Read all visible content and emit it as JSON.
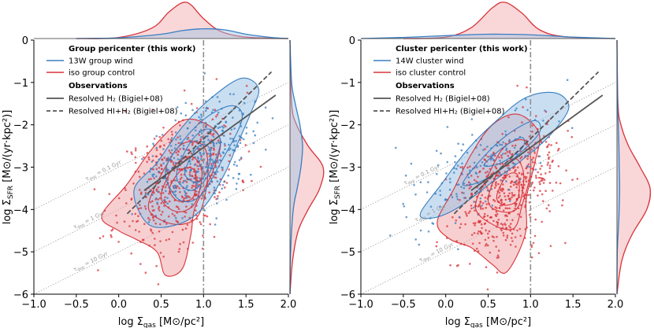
{
  "colors": {
    "wind": "#3a7fc0",
    "wind_fill": "#9cc3e6",
    "control": "#d8333a",
    "control_fill": "#f2a7aa",
    "obs": "#555555",
    "tdep": "#9a9a9a",
    "vline": "#909090"
  },
  "chart_data": [
    {
      "type": "scatter",
      "panel": "left",
      "xlabel": "log Σ",
      "xlabel_sub": "gas",
      "xlabel_unit": "[M⊙/pc²]",
      "ylabel": "log Σ",
      "ylabel_sub": "SFR",
      "ylabel_unit": "[M⊙/(yr·kpc²)]",
      "xlim": [
        -1.0,
        2.0
      ],
      "ylim": [
        -6,
        0
      ],
      "xticks": [
        "−1.0",
        "−0.5",
        "0.0",
        "0.5",
        "1.0",
        "1.5",
        "2.0"
      ],
      "xtick_values": [
        -1.0,
        -0.5,
        0.0,
        0.5,
        1.0,
        1.5,
        2.0
      ],
      "yticks": [
        "−6",
        "−5",
        "−4",
        "−3",
        "−2",
        "−1",
        "0"
      ],
      "ytick_values": [
        -6,
        -5,
        -4,
        -3,
        -2,
        -1,
        0
      ],
      "vline_x": 1.0,
      "legend": {
        "title": "Group pericenter (this work)",
        "wind": "13W group wind",
        "control": "iso group control",
        "obs_title": "Observations",
        "h2": "Resolved H₂ (Bigiel+08)",
        "hih2": "Resolved HI+H₂ (Bigiel+08)"
      },
      "tdep_lines": [
        {
          "label": "τ_dep = 0.1 Gyr",
          "label_sub": "dep",
          "label_val": " = 0.1 Gyr",
          "intercept": -3.0,
          "label_x": -0.38
        },
        {
          "label": "τ_dep = 1 Gyr",
          "label_sub": "dep",
          "label_val": " = 1 Gyr",
          "intercept": -4.0,
          "label_x": -0.52
        },
        {
          "label": "τ_dep = 10 Gyr",
          "label_sub": "dep",
          "label_val": " = 10 Gyr",
          "intercept": -5.0,
          "label_x": -0.52
        }
      ],
      "h2_line": {
        "x": [
          0.3,
          1.85
        ],
        "y": [
          -3.55,
          -1.3
        ]
      },
      "hih2_line": {
        "x": [
          0.1,
          1.8
        ],
        "y": [
          -4.1,
          -0.75
        ]
      },
      "wind_series": {
        "name": "13W group wind",
        "center": [
          0.95,
          -2.7
        ],
        "spread": [
          0.28,
          0.6
        ],
        "n": 330
      },
      "control_series": {
        "name": "iso group control",
        "center": [
          0.7,
          -3.3
        ],
        "spread": [
          0.35,
          0.75
        ],
        "n": 450
      },
      "wind_contours": [
        [
          [
            0.18,
            -3.55
          ],
          [
            0.45,
            -2.9
          ],
          [
            0.75,
            -2.05
          ],
          [
            1.1,
            -1.35
          ],
          [
            1.45,
            -0.9
          ],
          [
            1.65,
            -1.15
          ],
          [
            1.55,
            -1.75
          ],
          [
            1.4,
            -2.45
          ],
          [
            1.25,
            -3.15
          ],
          [
            1.0,
            -3.95
          ],
          [
            0.7,
            -4.35
          ],
          [
            0.35,
            -4.35
          ]
        ],
        [
          [
            0.55,
            -3.1
          ],
          [
            0.75,
            -2.4
          ],
          [
            1.05,
            -1.8
          ],
          [
            1.35,
            -1.55
          ],
          [
            1.45,
            -1.9
          ],
          [
            1.2,
            -2.9
          ],
          [
            0.95,
            -3.7
          ],
          [
            0.7,
            -3.75
          ]
        ],
        [
          [
            0.68,
            -3.2
          ],
          [
            0.85,
            -2.4
          ],
          [
            1.05,
            -2.1
          ],
          [
            1.2,
            -2.4
          ],
          [
            1.05,
            -3.2
          ],
          [
            0.85,
            -3.55
          ]
        ],
        [
          [
            0.78,
            -3.15
          ],
          [
            0.92,
            -2.55
          ],
          [
            1.05,
            -2.5
          ],
          [
            1.08,
            -2.85
          ],
          [
            0.95,
            -3.35
          ]
        ]
      ],
      "control_contours": [
        [
          [
            -0.2,
            -4.15
          ],
          [
            0.1,
            -3.4
          ],
          [
            0.4,
            -2.55
          ],
          [
            0.75,
            -1.9
          ],
          [
            1.05,
            -2.0
          ],
          [
            1.2,
            -2.4
          ],
          [
            1.1,
            -3.15
          ],
          [
            0.9,
            -3.95
          ],
          [
            0.85,
            -4.6
          ],
          [
            0.75,
            -5.4
          ],
          [
            0.55,
            -5.55
          ],
          [
            0.45,
            -5.0
          ],
          [
            0.2,
            -4.7
          ],
          [
            0.0,
            -4.5
          ]
        ],
        [
          [
            0.35,
            -3.9
          ],
          [
            0.55,
            -3.0
          ],
          [
            0.75,
            -2.45
          ],
          [
            1.0,
            -2.5
          ],
          [
            1.05,
            -3.2
          ],
          [
            0.95,
            -4.1
          ],
          [
            0.75,
            -4.35
          ],
          [
            0.5,
            -4.25
          ]
        ],
        [
          [
            0.5,
            -3.7
          ],
          [
            0.65,
            -3.0
          ],
          [
            0.85,
            -2.75
          ],
          [
            0.98,
            -3.1
          ],
          [
            0.9,
            -3.85
          ],
          [
            0.68,
            -4.05
          ]
        ],
        [
          [
            0.6,
            -3.5
          ],
          [
            0.75,
            -3.05
          ],
          [
            0.9,
            -3.1
          ],
          [
            0.88,
            -3.7
          ],
          [
            0.7,
            -3.8
          ]
        ]
      ],
      "marginal_x_wind": {
        "centers": [
          -0.5,
          0.0,
          0.5,
          0.75,
          1.0,
          1.25,
          1.5,
          1.8,
          2.0
        ],
        "density": [
          0.0,
          0.02,
          0.12,
          0.22,
          0.27,
          0.24,
          0.12,
          0.03,
          0.0
        ]
      },
      "marginal_x_control": {
        "centers": [
          -0.5,
          0.0,
          0.4,
          0.6,
          0.8,
          1.0,
          1.2,
          1.5,
          2.0
        ],
        "density": [
          0.0,
          0.03,
          0.3,
          0.75,
          1.0,
          0.55,
          0.2,
          0.04,
          0.0
        ]
      },
      "marginal_y_wind": {
        "centers": [
          -6,
          -5,
          -4,
          -3.5,
          -3,
          -2.5,
          -2,
          -1.5,
          -1,
          0
        ],
        "density": [
          0.0,
          0.02,
          0.1,
          0.22,
          0.33,
          0.38,
          0.3,
          0.16,
          0.05,
          0.0
        ]
      },
      "marginal_y_control": {
        "centers": [
          -6,
          -5.2,
          -4.5,
          -4,
          -3.5,
          -3,
          -2.5,
          -2,
          -1.5,
          0
        ],
        "density": [
          0.0,
          0.08,
          0.25,
          0.55,
          0.9,
          1.0,
          0.55,
          0.2,
          0.05,
          0.0
        ]
      }
    },
    {
      "type": "scatter",
      "panel": "right",
      "xlabel": "log Σ",
      "xlabel_sub": "gas",
      "xlabel_unit": "[M⊙/pc²]",
      "ylabel": "log Σ",
      "ylabel_sub": "SFR",
      "ylabel_unit": "[M⊙/(yr·kpc²)]",
      "xlim": [
        -1.0,
        2.0
      ],
      "ylim": [
        -6,
        0
      ],
      "xticks": [
        "−1.0",
        "−0.5",
        "0.0",
        "0.5",
        "1.0",
        "1.5",
        "2.0"
      ],
      "xtick_values": [
        -1.0,
        -0.5,
        0.0,
        0.5,
        1.0,
        1.5,
        2.0
      ],
      "yticks": [
        "−6",
        "−5",
        "−4",
        "−3",
        "−2",
        "−1",
        "0"
      ],
      "ytick_values": [
        -6,
        -5,
        -4,
        -3,
        -2,
        -1,
        0
      ],
      "vline_x": 1.0,
      "legend": {
        "title": "Cluster pericenter (this work)",
        "wind": "14W cluster wind",
        "control": "iso cluster control",
        "obs_title": "Observations",
        "h2": "Resolved H₂ (Bigiel+08)",
        "hih2": "Resolved HI+H₂ (Bigiel+08)"
      },
      "tdep_lines": [
        {
          "label": "τ_dep = 0.1 Gyr",
          "label_sub": "dep",
          "label_val": " = 0.1 Gyr",
          "intercept": -3.0,
          "label_x": -0.48
        },
        {
          "label": "τ_dep = 1 Gyr",
          "label_sub": "dep",
          "label_val": " = 1 Gyr",
          "intercept": -4.0,
          "label_x": -0.35
        },
        {
          "label": "τ_dep = 10 Gyr",
          "label_sub": "dep",
          "label_val": " = 10 Gyr",
          "intercept": -5.0,
          "label_x": -0.3
        }
      ],
      "h2_line": {
        "x": [
          0.3,
          1.85
        ],
        "y": [
          -3.55,
          -1.3
        ]
      },
      "hih2_line": {
        "x": [
          0.1,
          1.8
        ],
        "y": [
          -4.1,
          -0.75
        ]
      },
      "wind_series": {
        "name": "14W cluster wind",
        "center": [
          0.35,
          -3.1
        ],
        "spread": [
          0.45,
          0.55
        ],
        "n": 160
      },
      "control_series": {
        "name": "iso cluster control",
        "center": [
          0.7,
          -3.6
        ],
        "spread": [
          0.3,
          0.7
        ],
        "n": 500
      },
      "wind_contours": [
        [
          [
            -0.3,
            -4.1
          ],
          [
            -0.05,
            -3.4
          ],
          [
            0.25,
            -2.6
          ],
          [
            0.6,
            -1.9
          ],
          [
            0.95,
            -1.35
          ],
          [
            1.3,
            -1.25
          ],
          [
            1.45,
            -1.6
          ],
          [
            1.25,
            -2.2
          ],
          [
            0.95,
            -2.75
          ],
          [
            0.55,
            -3.35
          ],
          [
            0.15,
            -3.95
          ],
          [
            -0.15,
            -4.2
          ]
        ],
        [
          [
            0.2,
            -3.4
          ],
          [
            0.45,
            -2.75
          ],
          [
            0.75,
            -2.2
          ],
          [
            1.05,
            -1.9
          ],
          [
            1.1,
            -2.2
          ],
          [
            0.8,
            -2.8
          ],
          [
            0.45,
            -3.3
          ]
        ],
        [
          [
            0.45,
            -2.95
          ],
          [
            0.7,
            -2.5
          ],
          [
            0.9,
            -2.3
          ],
          [
            0.9,
            -2.55
          ],
          [
            0.65,
            -2.9
          ]
        ]
      ],
      "control_contours": [
        [
          [
            -0.1,
            -4.3
          ],
          [
            0.1,
            -3.5
          ],
          [
            0.3,
            -2.7
          ],
          [
            0.55,
            -2.0
          ],
          [
            0.85,
            -1.75
          ],
          [
            1.1,
            -2.2
          ],
          [
            1.05,
            -2.9
          ],
          [
            0.95,
            -3.75
          ],
          [
            0.95,
            -4.45
          ],
          [
            0.85,
            -5.05
          ],
          [
            0.7,
            -5.5
          ],
          [
            0.55,
            -5.3
          ],
          [
            0.3,
            -4.9
          ],
          [
            0.05,
            -4.7
          ]
        ],
        [
          [
            0.35,
            -3.95
          ],
          [
            0.5,
            -3.2
          ],
          [
            0.7,
            -2.5
          ],
          [
            0.95,
            -2.4
          ],
          [
            1.0,
            -3.1
          ],
          [
            0.9,
            -3.9
          ],
          [
            0.8,
            -4.45
          ],
          [
            0.55,
            -4.35
          ]
        ],
        [
          [
            0.5,
            -3.8
          ],
          [
            0.62,
            -3.1
          ],
          [
            0.82,
            -2.8
          ],
          [
            0.92,
            -3.2
          ],
          [
            0.85,
            -3.95
          ],
          [
            0.65,
            -4.05
          ]
        ],
        [
          [
            0.6,
            -3.7
          ],
          [
            0.72,
            -3.2
          ],
          [
            0.85,
            -3.2
          ],
          [
            0.85,
            -3.75
          ],
          [
            0.7,
            -3.9
          ]
        ]
      ],
      "marginal_x_wind": {
        "centers": [
          -1.0,
          -0.5,
          0.0,
          0.5,
          0.9,
          1.2,
          1.5,
          2.0
        ],
        "density": [
          0.0,
          0.03,
          0.08,
          0.12,
          0.11,
          0.08,
          0.04,
          0.0
        ]
      },
      "marginal_x_control": {
        "centers": [
          -0.5,
          0.0,
          0.3,
          0.55,
          0.7,
          0.9,
          1.1,
          1.4,
          2.0
        ],
        "density": [
          0.0,
          0.04,
          0.3,
          0.85,
          1.0,
          0.7,
          0.25,
          0.05,
          0.0
        ]
      },
      "marginal_y_wind": {
        "centers": [
          -6,
          -5,
          -4.2,
          -3.5,
          -3,
          -2.5,
          -2,
          -1.5,
          0
        ],
        "density": [
          0.0,
          0.01,
          0.06,
          0.08,
          0.07,
          0.06,
          0.04,
          0.02,
          0.0
        ]
      },
      "marginal_y_control": {
        "centers": [
          -6,
          -5.2,
          -4.6,
          -4,
          -3.5,
          -3,
          -2.5,
          -2,
          -1.5,
          0
        ],
        "density": [
          0.0,
          0.15,
          0.45,
          0.9,
          1.0,
          0.7,
          0.35,
          0.12,
          0.03,
          0.0
        ]
      }
    }
  ]
}
